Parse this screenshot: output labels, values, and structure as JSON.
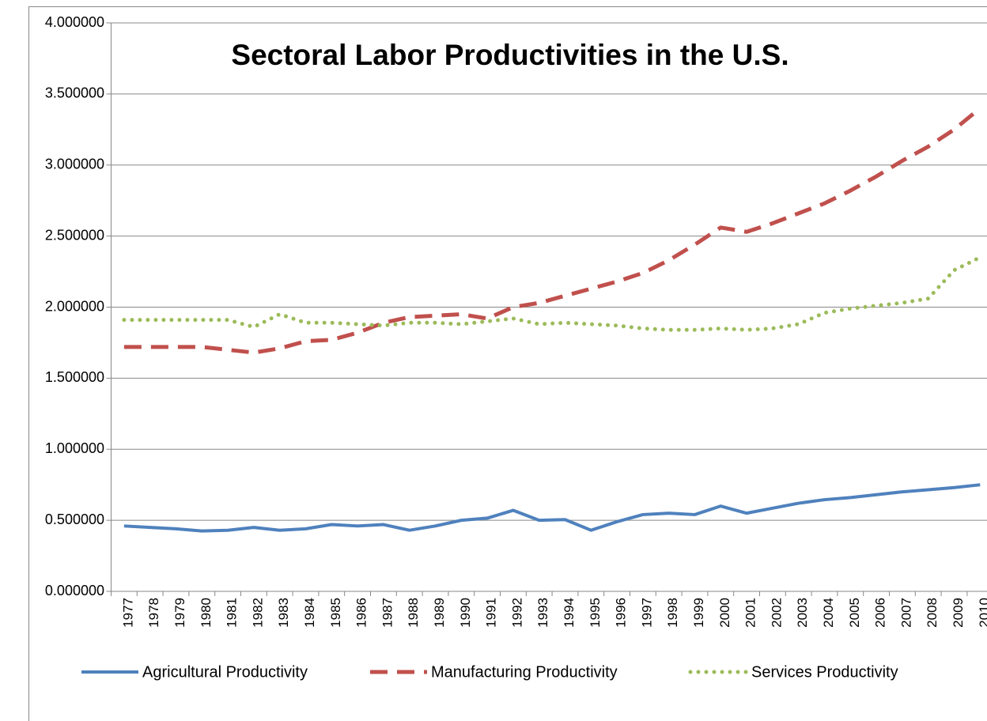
{
  "chart_data": {
    "type": "line",
    "title": "Sectoral Labor Productivities in the U.S.",
    "categories": [
      "1977",
      "1978",
      "1979",
      "1980",
      "1981",
      "1982",
      "1983",
      "1984",
      "1985",
      "1986",
      "1987",
      "1988",
      "1989",
      "1990",
      "1991",
      "1992",
      "1993",
      "1994",
      "1995",
      "1996",
      "1997",
      "1998",
      "1999",
      "2000",
      "2001",
      "2002",
      "2003",
      "2004",
      "2005",
      "2006",
      "2007",
      "2008",
      "2009",
      "2010"
    ],
    "series": [
      {
        "name": "Agricultural Productivity",
        "color": "#4f81bd",
        "line_style": "solid",
        "values": [
          0.46,
          0.45,
          0.44,
          0.425,
          0.43,
          0.45,
          0.43,
          0.44,
          0.47,
          0.46,
          0.47,
          0.43,
          0.46,
          0.5,
          0.515,
          0.57,
          0.5,
          0.505,
          0.43,
          0.49,
          0.54,
          0.55,
          0.54,
          0.6,
          0.55,
          0.585,
          0.62,
          0.645,
          0.66,
          0.68,
          0.7,
          0.715,
          0.73,
          0.75
        ]
      },
      {
        "name": "Manufacturing Productivity",
        "color": "#c0504d",
        "line_style": "dashed",
        "values": [
          1.72,
          1.72,
          1.72,
          1.72,
          1.7,
          1.68,
          1.71,
          1.76,
          1.77,
          1.82,
          1.89,
          1.93,
          1.94,
          1.95,
          1.92,
          2.0,
          2.03,
          2.08,
          2.13,
          2.18,
          2.24,
          2.33,
          2.44,
          2.56,
          2.53,
          2.59,
          2.66,
          2.73,
          2.82,
          2.92,
          3.03,
          3.13,
          3.25,
          3.4
        ]
      },
      {
        "name": "Services Productivity",
        "color": "#9bbb59",
        "line_style": "dotted",
        "values": [
          1.91,
          1.91,
          1.91,
          1.91,
          1.91,
          1.86,
          1.95,
          1.89,
          1.89,
          1.88,
          1.87,
          1.89,
          1.89,
          1.88,
          1.9,
          1.92,
          1.88,
          1.89,
          1.88,
          1.87,
          1.85,
          1.84,
          1.84,
          1.85,
          1.84,
          1.85,
          1.88,
          1.96,
          1.99,
          2.01,
          2.03,
          2.06,
          2.26,
          2.35
        ]
      }
    ],
    "ylim": [
      0,
      4
    ],
    "yticks": [
      {
        "value": 0,
        "label": "0.000000"
      },
      {
        "value": 0.5,
        "label": "0.500000"
      },
      {
        "value": 1,
        "label": "1.000000"
      },
      {
        "value": 1.5,
        "label": "1.500000"
      },
      {
        "value": 2,
        "label": "2.000000"
      },
      {
        "value": 2.5,
        "label": "2.500000"
      },
      {
        "value": 3,
        "label": "3.000000"
      },
      {
        "value": 3.5,
        "label": "3.500000"
      },
      {
        "value": 4,
        "label": "4.000000"
      }
    ],
    "grid": true,
    "legend": "bottom"
  }
}
